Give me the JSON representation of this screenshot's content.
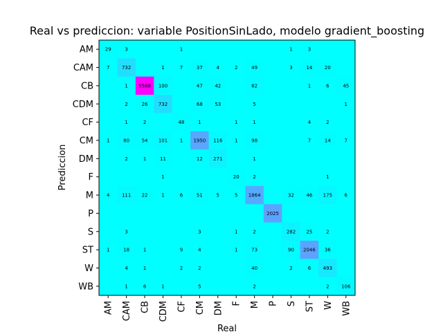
{
  "chart_data": {
    "type": "heatmap",
    "title": "Real vs prediccion: variable PositionSinLado, modelo gradient_boosting",
    "xlabel": "Real",
    "ylabel": "Prediccion",
    "x_categories": [
      "AM",
      "CAM",
      "CB",
      "CDM",
      "CF",
      "CM",
      "DM",
      "F",
      "M",
      "P",
      "S",
      "ST",
      "W",
      "WB"
    ],
    "y_categories": [
      "AM",
      "CAM",
      "CB",
      "CDM",
      "CF",
      "CM",
      "DM",
      "F",
      "M",
      "P",
      "S",
      "ST",
      "W",
      "WB"
    ],
    "colormap": {
      "low": "#00ffff",
      "high": "#ff00ff"
    },
    "value_range": [
      0,
      5588
    ],
    "matrix": [
      [
        29,
        3,
        null,
        null,
        1,
        null,
        null,
        null,
        null,
        null,
        1,
        3,
        null,
        null
      ],
      [
        7,
        732,
        null,
        1,
        7,
        37,
        4,
        2,
        49,
        null,
        3,
        14,
        20,
        null
      ],
      [
        null,
        1,
        5588,
        100,
        null,
        47,
        42,
        null,
        82,
        null,
        null,
        1,
        6,
        45
      ],
      [
        null,
        2,
        26,
        732,
        null,
        68,
        53,
        null,
        5,
        null,
        null,
        null,
        null,
        1
      ],
      [
        null,
        1,
        2,
        null,
        48,
        1,
        null,
        1,
        1,
        null,
        null,
        4,
        2,
        null
      ],
      [
        1,
        80,
        54,
        101,
        1,
        1950,
        116,
        1,
        98,
        null,
        null,
        7,
        14,
        7
      ],
      [
        null,
        2,
        1,
        11,
        null,
        12,
        271,
        null,
        1,
        null,
        null,
        null,
        null,
        null
      ],
      [
        null,
        null,
        null,
        1,
        null,
        null,
        null,
        20,
        2,
        null,
        null,
        null,
        1,
        null
      ],
      [
        4,
        111,
        22,
        1,
        6,
        51,
        5,
        5,
        1864,
        null,
        32,
        46,
        175,
        6
      ],
      [
        null,
        null,
        null,
        null,
        null,
        null,
        null,
        null,
        null,
        2025,
        null,
        null,
        null,
        null
      ],
      [
        null,
        3,
        null,
        null,
        null,
        3,
        null,
        1,
        2,
        null,
        282,
        25,
        2,
        null
      ],
      [
        1,
        18,
        1,
        null,
        9,
        4,
        null,
        1,
        73,
        null,
        90,
        2046,
        36,
        null
      ],
      [
        null,
        4,
        1,
        null,
        2,
        2,
        null,
        null,
        40,
        null,
        2,
        6,
        493,
        null
      ],
      [
        null,
        1,
        6,
        1,
        null,
        5,
        null,
        null,
        2,
        null,
        null,
        null,
        2,
        106
      ]
    ]
  }
}
